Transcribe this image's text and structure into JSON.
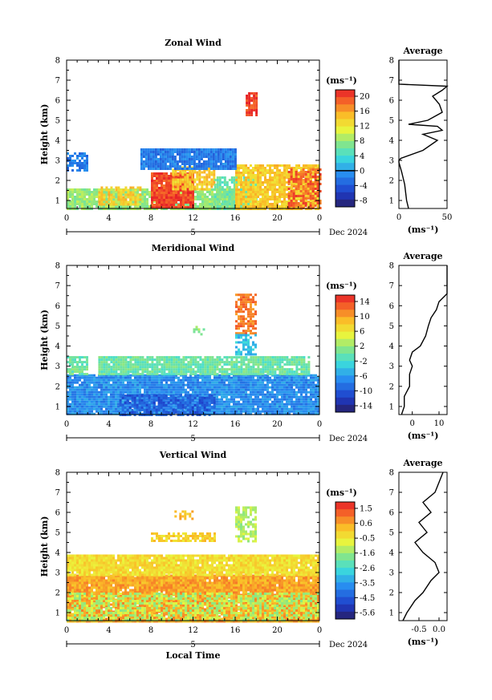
{
  "figure": {
    "date_label": "Dec 2024",
    "xlabel": "Local Time",
    "avg_title": "Average",
    "unit_label": "(ms⁻¹)",
    "hour_ticks": [
      "0",
      "4",
      "8",
      "12",
      "16",
      "20",
      "0"
    ],
    "day_label": "5",
    "height_ticks": [
      "1",
      "2",
      "3",
      "4",
      "5",
      "6",
      "7",
      "8"
    ],
    "ylabel": "Height (km)"
  },
  "chart_data": [
    {
      "type": "heatmap",
      "title": "Zonal Wind",
      "ylabel": "Height (km)",
      "x_range_hours": [
        0,
        24
      ],
      "ylim": [
        0.6,
        8
      ],
      "colorbar": {
        "ticks": [
          "20",
          "16",
          "12",
          "8",
          "4",
          "0",
          "-4",
          "-8"
        ],
        "range": [
          -10,
          22
        ],
        "zero_line": 0
      },
      "average_profile": {
        "x_ticks": [
          "0",
          "50"
        ],
        "xlim": [
          0,
          50
        ],
        "points": [
          [
            10,
            0.6
          ],
          [
            8,
            1.0
          ],
          [
            6,
            1.8
          ],
          [
            3,
            2.4
          ],
          [
            0,
            2.9
          ],
          [
            0,
            3.0
          ],
          [
            2,
            3.1
          ],
          [
            25,
            3.5
          ],
          [
            40,
            4.0
          ],
          [
            25,
            4.3
          ],
          [
            45,
            4.5
          ],
          [
            40,
            4.7
          ],
          [
            10,
            4.8
          ],
          [
            30,
            5.0
          ],
          [
            45,
            5.4
          ],
          [
            42,
            5.8
          ],
          [
            35,
            6.2
          ],
          [
            45,
            6.5
          ],
          [
            50,
            6.7
          ],
          [
            0,
            6.8
          ],
          [
            0,
            8.0
          ]
        ]
      },
      "blobs": [
        {
          "t0": 0,
          "t1": 18,
          "h0": 0.6,
          "h1": 1.6,
          "value": 8,
          "density": 0.9
        },
        {
          "t0": 3,
          "t1": 7,
          "h0": 0.8,
          "h1": 1.7,
          "value": 14,
          "density": 0.7
        },
        {
          "t0": 8,
          "t1": 12,
          "h0": 0.6,
          "h1": 2.4,
          "value": 20,
          "density": 0.95
        },
        {
          "t0": 10,
          "t1": 14,
          "h0": 1.6,
          "h1": 2.7,
          "value": 14,
          "density": 0.8
        },
        {
          "t0": 14,
          "t1": 18,
          "h0": 0.6,
          "h1": 2.2,
          "value": 6,
          "density": 0.8
        },
        {
          "t0": 16,
          "t1": 24,
          "h0": 0.6,
          "h1": 2.8,
          "value": 14,
          "density": 0.9
        },
        {
          "t0": 21,
          "t1": 24,
          "h0": 0.6,
          "h1": 2.6,
          "value": 19,
          "density": 0.6
        },
        {
          "t0": 7,
          "t1": 16,
          "h0": 2.6,
          "h1": 3.6,
          "value": -2,
          "density": 0.95
        },
        {
          "t0": 0,
          "t1": 2,
          "h0": 2.5,
          "h1": 3.4,
          "value": -2,
          "density": 0.7
        },
        {
          "t0": 17,
          "t1": 18,
          "h0": 5.3,
          "h1": 6.4,
          "value": 20,
          "density": 0.8
        }
      ]
    },
    {
      "type": "heatmap",
      "title": "Meridional Wind",
      "ylabel": "Height (km)",
      "x_range_hours": [
        0,
        24
      ],
      "ylim": [
        0.6,
        8
      ],
      "colorbar": {
        "ticks": [
          "14",
          "10",
          "6",
          "2",
          "-2",
          "-6",
          "-10",
          "-14"
        ],
        "range": [
          -16,
          16
        ],
        "zero_line": 0
      },
      "average_profile": {
        "x_ticks": [
          "0",
          "10"
        ],
        "xlim": [
          -5,
          13
        ],
        "points": [
          [
            -4,
            0.6
          ],
          [
            -3,
            1.0
          ],
          [
            -3,
            1.5
          ],
          [
            -1,
            2.0
          ],
          [
            -1,
            2.6
          ],
          [
            0,
            3.0
          ],
          [
            -1,
            3.3
          ],
          [
            0,
            3.7
          ],
          [
            3,
            4.0
          ],
          [
            5,
            4.5
          ],
          [
            6,
            5.0
          ],
          [
            7,
            5.4
          ],
          [
            9,
            5.8
          ],
          [
            10,
            6.2
          ],
          [
            13,
            6.6
          ],
          [
            13,
            8.0
          ]
        ]
      },
      "blobs": [
        {
          "t0": 0,
          "t1": 24,
          "h0": 0.6,
          "h1": 2.6,
          "value": -7,
          "density": 0.95
        },
        {
          "t0": 5,
          "t1": 14,
          "h0": 0.6,
          "h1": 1.6,
          "value": -10,
          "density": 0.7
        },
        {
          "t0": 3,
          "t1": 23,
          "h0": 2.6,
          "h1": 3.5,
          "value": 0,
          "density": 0.9
        },
        {
          "t0": 0,
          "t1": 2,
          "h0": 2.6,
          "h1": 3.5,
          "value": 0,
          "density": 0.8
        },
        {
          "t0": 16,
          "t1": 18,
          "h0": 4.6,
          "h1": 6.6,
          "value": 12,
          "density": 0.7
        },
        {
          "t0": 16,
          "t1": 18,
          "h0": 3.6,
          "h1": 4.6,
          "value": -4,
          "density": 0.6
        },
        {
          "t0": 12,
          "t1": 13,
          "h0": 4.6,
          "h1": 5.0,
          "value": 2,
          "density": 0.6
        }
      ]
    },
    {
      "type": "heatmap",
      "title": "Vertical Wind",
      "ylabel": "Height (km)",
      "xlabel": "Local Time",
      "x_range_hours": [
        0,
        24
      ],
      "ylim": [
        0.6,
        8
      ],
      "colorbar": {
        "ticks": [
          "1.5",
          "0.6",
          "-0.5",
          "-1.6",
          "-2.6",
          "-3.5",
          "-4.5",
          "-5.6"
        ],
        "range": [
          -6,
          2
        ],
        "zero_line": null
      },
      "average_profile": {
        "x_ticks": [
          "-0.5",
          "0.0"
        ],
        "xlim": [
          -1.0,
          0.2
        ],
        "points": [
          [
            -0.9,
            0.6
          ],
          [
            -0.8,
            1.0
          ],
          [
            -0.6,
            1.6
          ],
          [
            -0.4,
            2.0
          ],
          [
            -0.2,
            2.6
          ],
          [
            0.0,
            3.0
          ],
          [
            -0.1,
            3.5
          ],
          [
            -0.4,
            4.0
          ],
          [
            -0.6,
            4.5
          ],
          [
            -0.3,
            5.0
          ],
          [
            -0.5,
            5.5
          ],
          [
            -0.2,
            6.0
          ],
          [
            -0.4,
            6.5
          ],
          [
            -0.1,
            7.0
          ],
          [
            0.0,
            7.5
          ],
          [
            0.1,
            8.0
          ]
        ]
      },
      "blobs": [
        {
          "t0": 0,
          "t1": 24,
          "h0": 0.6,
          "h1": 2.9,
          "value": 0.5,
          "density": 0.98
        },
        {
          "t0": 0,
          "t1": 24,
          "h0": 0.6,
          "h1": 2.0,
          "value": -1.2,
          "density": 0.55
        },
        {
          "t0": 0,
          "t1": 24,
          "h0": 2.9,
          "h1": 3.9,
          "value": -0.3,
          "density": 0.95
        },
        {
          "t0": 8,
          "t1": 14,
          "h0": 4.6,
          "h1": 5.0,
          "value": -0.1,
          "density": 0.7
        },
        {
          "t0": 16,
          "t1": 18,
          "h0": 4.6,
          "h1": 6.3,
          "value": -1.2,
          "density": 0.7
        },
        {
          "t0": 10,
          "t1": 12,
          "h0": 5.7,
          "h1": 6.1,
          "value": 0.2,
          "density": 0.6
        }
      ]
    }
  ]
}
